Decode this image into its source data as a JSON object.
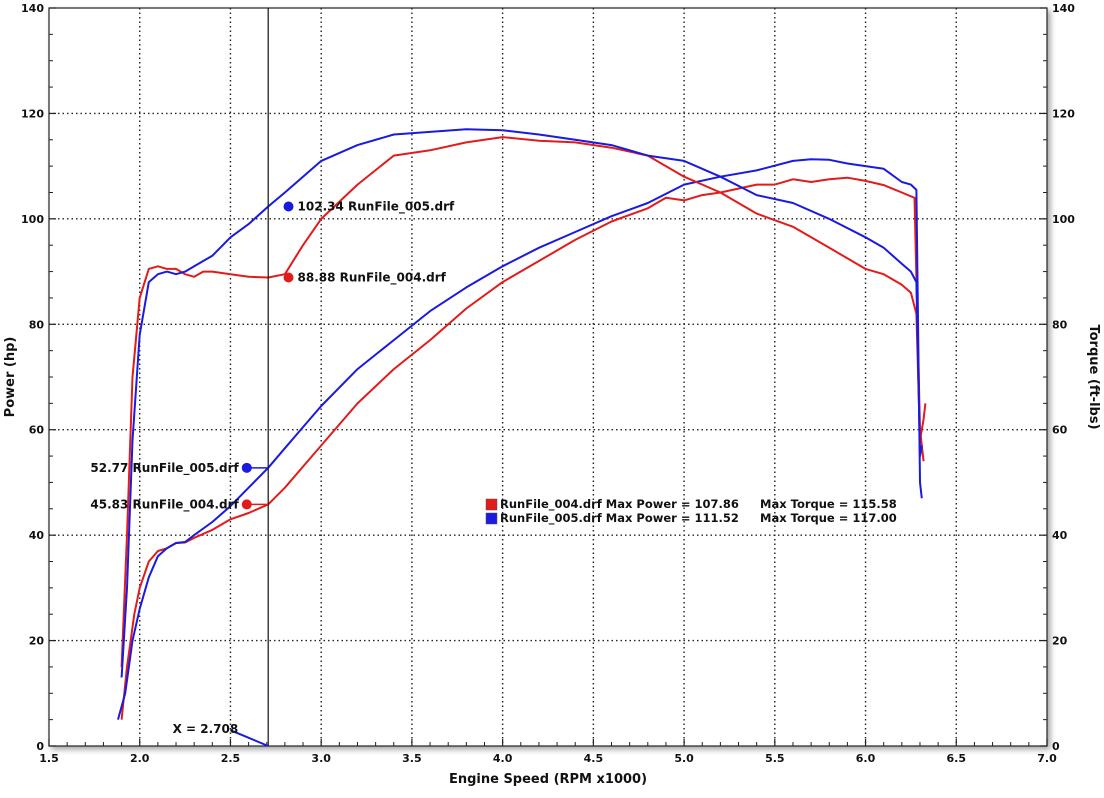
{
  "chart_data": {
    "type": "line",
    "xlabel": "Engine Speed (RPM x1000)",
    "ylabel_left": "Power (hp)",
    "ylabel_right": "Torque (ft-lbs)",
    "xlim": [
      1.5,
      7.0
    ],
    "ylim_left": [
      0,
      140
    ],
    "ylim_right": [
      0,
      140
    ],
    "x_ticks": [
      "1.5",
      "2.0",
      "2.5",
      "3.0",
      "3.5",
      "4.0",
      "4.5",
      "5.0",
      "5.5",
      "6.0",
      "6.5",
      "7.0"
    ],
    "y_ticks_left": [
      "0",
      "20",
      "40",
      "60",
      "80",
      "100",
      "120",
      "140"
    ],
    "y_ticks_right": [
      "0",
      "20",
      "40",
      "60",
      "80",
      "100",
      "120",
      "140"
    ],
    "grid": true,
    "colors": {
      "runfile_004": "#e21b1b",
      "runfile_005": "#1a1ae0"
    },
    "series": [
      {
        "name": "RunFile_004.drf",
        "measure": "power",
        "color": "#e21b1b",
        "x": [
          1.9,
          1.93,
          1.97,
          2.0,
          2.05,
          2.1,
          2.15,
          2.2,
          2.25,
          2.3,
          2.4,
          2.5,
          2.6,
          2.708,
          2.8,
          2.9,
          3.0,
          3.2,
          3.4,
          3.6,
          3.8,
          4.0,
          4.2,
          4.4,
          4.6,
          4.8,
          4.9,
          5.0,
          5.1,
          5.2,
          5.4,
          5.5,
          5.6,
          5.7,
          5.8,
          5.9,
          6.0,
          6.1,
          6.2,
          6.27,
          6.3,
          6.32
        ],
        "y": [
          5,
          15,
          25,
          30,
          35,
          37,
          37.5,
          38.5,
          38.6,
          39.5,
          41,
          43,
          44.2,
          45.83,
          49,
          53,
          57,
          65,
          71.5,
          77,
          83,
          88,
          92,
          96,
          99.5,
          102,
          104,
          103.5,
          104.5,
          105,
          106.5,
          106.5,
          107.5,
          107,
          107.5,
          107.8,
          107.2,
          106.4,
          105,
          104,
          60,
          54
        ]
      },
      {
        "name": "RunFile_005.drf",
        "measure": "power",
        "color": "#1a1ae0",
        "x": [
          1.88,
          1.92,
          1.96,
          2.0,
          2.05,
          2.1,
          2.15,
          2.2,
          2.25,
          2.3,
          2.4,
          2.5,
          2.6,
          2.708,
          2.8,
          2.9,
          3.0,
          3.2,
          3.4,
          3.6,
          3.8,
          4.0,
          4.2,
          4.4,
          4.6,
          4.8,
          5.0,
          5.2,
          5.4,
          5.6,
          5.7,
          5.8,
          5.9,
          6.0,
          6.1,
          6.2,
          6.25,
          6.28,
          6.3,
          6.31
        ],
        "y": [
          5,
          10,
          20,
          26,
          32,
          36,
          37.5,
          38.5,
          38.7,
          40,
          42.5,
          45.5,
          49,
          52.77,
          56.5,
          60.5,
          64.5,
          71.5,
          77,
          82.5,
          87,
          91,
          94.5,
          97.5,
          100.5,
          103,
          106.5,
          108,
          109.2,
          111,
          111.3,
          111.2,
          110.5,
          110,
          109.5,
          107,
          106.5,
          105.5,
          50,
          47
        ]
      },
      {
        "name": "RunFile_004.drf",
        "measure": "torque",
        "color": "#e21b1b",
        "x": [
          1.9,
          1.93,
          1.96,
          2.0,
          2.05,
          2.1,
          2.15,
          2.2,
          2.25,
          2.3,
          2.35,
          2.4,
          2.5,
          2.6,
          2.708,
          2.8,
          2.9,
          3.0,
          3.2,
          3.4,
          3.6,
          3.8,
          4.0,
          4.2,
          4.4,
          4.6,
          4.8,
          5.0,
          5.2,
          5.4,
          5.6,
          5.8,
          6.0,
          6.1,
          6.2,
          6.25,
          6.28,
          6.3,
          6.32,
          6.33
        ],
        "y": [
          15,
          40,
          70,
          85,
          90.5,
          91,
          90.5,
          90.5,
          89.5,
          89,
          90,
          90,
          89.5,
          89,
          88.88,
          89.5,
          95,
          100,
          106.5,
          112,
          113,
          114.5,
          115.5,
          114.8,
          114.5,
          113.5,
          112,
          108,
          105,
          101,
          98.5,
          94.5,
          90.5,
          89.5,
          87.5,
          86,
          82,
          58,
          62,
          65
        ]
      },
      {
        "name": "RunFile_005.drf",
        "measure": "torque",
        "color": "#1a1ae0",
        "x": [
          1.9,
          1.93,
          1.96,
          2.0,
          2.05,
          2.1,
          2.15,
          2.2,
          2.25,
          2.3,
          2.4,
          2.5,
          2.6,
          2.708,
          2.8,
          2.9,
          3.0,
          3.2,
          3.4,
          3.6,
          3.8,
          4.0,
          4.2,
          4.4,
          4.6,
          4.8,
          5.0,
          5.2,
          5.4,
          5.6,
          5.8,
          6.0,
          6.1,
          6.2,
          6.25,
          6.28,
          6.3,
          6.31
        ],
        "y": [
          13,
          30,
          58,
          78,
          88,
          89.5,
          90,
          89.5,
          90,
          91,
          93,
          96.5,
          99,
          102.34,
          105,
          108,
          111,
          114,
          116,
          116.5,
          117,
          116.8,
          116,
          115,
          114,
          112,
          111,
          108,
          104.5,
          103,
          100,
          96.5,
          94.5,
          91.5,
          90,
          88,
          55,
          57
        ]
      }
    ],
    "cursor": {
      "x": 2.708,
      "label": "X = 2.708"
    },
    "cursor_readouts": [
      {
        "text": "102.34 RunFile_005.drf",
        "value": 102.34,
        "color": "#1a1ae0",
        "side": "right"
      },
      {
        "text": "88.88 RunFile_004.drf",
        "value": 88.88,
        "color": "#e21b1b",
        "side": "right"
      },
      {
        "text": "52.77 RunFile_005.drf",
        "value": 52.77,
        "color": "#1a1ae0",
        "side": "left"
      },
      {
        "text": "45.83 RunFile_004.drf",
        "value": 45.83,
        "color": "#e21b1b",
        "side": "left"
      }
    ],
    "legend": [
      {
        "color": "#e21b1b",
        "text": "RunFile_004.drf Max Power = 107.86",
        "torque_text": "Max Torque = 115.58"
      },
      {
        "color": "#1a1ae0",
        "text": "RunFile_005.drf Max Power = 111.52",
        "torque_text": "Max Torque = 117.00"
      }
    ]
  }
}
